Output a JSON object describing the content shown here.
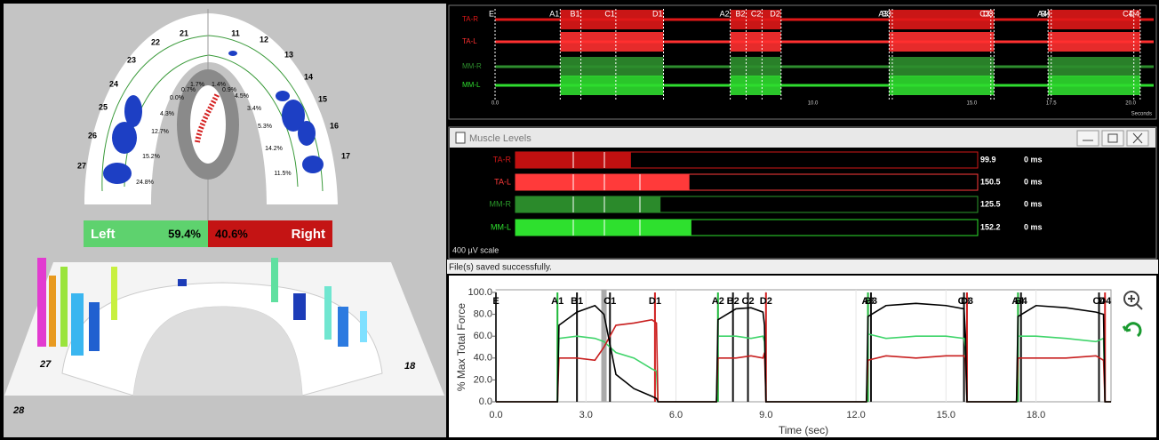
{
  "occlusal": {
    "teeth": [
      {
        "number": "21",
        "percent": "1.7%"
      },
      {
        "number": "22",
        "percent": "0.7%"
      },
      {
        "number": "23",
        "percent": "0.0%"
      },
      {
        "number": "24",
        "percent": "4.3%"
      },
      {
        "number": "25",
        "percent": "12.7%"
      },
      {
        "number": "26",
        "percent": "15.2%"
      },
      {
        "number": "27",
        "percent": "24.8%"
      },
      {
        "number": "11",
        "percent": "1.4%"
      },
      {
        "number": "12",
        "percent": "0.9%"
      },
      {
        "number": "13",
        "percent": "4.5%"
      },
      {
        "number": "14",
        "percent": "3.4%"
      },
      {
        "number": "15",
        "percent": "5.3%"
      },
      {
        "number": "16",
        "percent": "14.2%"
      },
      {
        "number": "17",
        "percent": "11.5%"
      }
    ]
  },
  "balance": {
    "left_label": "Left",
    "left_percent": "59.4%",
    "right_label": "Right",
    "right_percent": "40.6%"
  },
  "arch_3d_labels": [
    "27",
    "28",
    "18"
  ],
  "emg": {
    "channels": [
      "TA-R",
      "TA-L",
      "MM-R",
      "MM-L"
    ],
    "xticks": [
      {
        "value": 0,
        "label": "0.0"
      },
      {
        "value": 10,
        "label": "10.0"
      },
      {
        "value": 15,
        "label": "15.0"
      },
      {
        "value": 17.5,
        "label": "17.5"
      },
      {
        "value": 20,
        "label": "20.0"
      }
    ],
    "unit": "Seconds"
  },
  "muscle_levels": {
    "title": "Muscle Levels",
    "rows": [
      {
        "name": "TA-R",
        "value": 99.9,
        "delay": "0 ms"
      },
      {
        "name": "TA-L",
        "value": 150.5,
        "delay": "0 ms"
      },
      {
        "name": "MM-R",
        "value": 125.5,
        "delay": "0 ms"
      },
      {
        "name": "MM-L",
        "value": 152.2,
        "delay": "0 ms"
      }
    ],
    "scale": {
      "value": 400,
      "label": "400 µV scale"
    }
  },
  "status": "File(s) saved successfully.",
  "chart_data": {
    "type": "line",
    "x_label": "Time (sec)",
    "y_label": "% Max Total Force",
    "x": [
      0,
      2.05,
      2.1,
      2.7,
      3.3,
      3.6,
      4.0,
      4.6,
      5.2,
      5.35,
      5.4,
      7.35,
      7.4,
      8.0,
      8.5,
      8.9,
      8.95,
      9.0,
      12.35,
      12.4,
      13.0,
      14.0,
      15.0,
      15.6,
      15.65,
      15.7,
      17.35,
      17.4,
      18.0,
      19.0,
      20.0,
      20.25,
      20.3,
      20.5
    ],
    "series": [
      {
        "color": "#000000",
        "values": [
          0,
          0,
          70,
          82,
          88,
          80,
          25,
          12,
          5,
          3,
          0,
          0,
          75,
          85,
          86,
          82,
          70,
          0,
          0,
          78,
          88,
          90,
          88,
          85,
          60,
          0,
          0,
          78,
          88,
          86,
          82,
          80,
          0,
          0
        ]
      },
      {
        "color": "#3fd46a",
        "values": [
          0,
          0,
          58,
          60,
          58,
          55,
          45,
          40,
          30,
          28,
          0,
          0,
          60,
          60,
          58,
          60,
          55,
          0,
          0,
          62,
          58,
          60,
          60,
          58,
          50,
          0,
          0,
          60,
          60,
          58,
          55,
          58,
          0,
          0
        ]
      },
      {
        "color": "#c81e1e",
        "values": [
          0,
          0,
          40,
          40,
          38,
          50,
          70,
          72,
          75,
          72,
          0,
          0,
          40,
          40,
          42,
          40,
          45,
          0,
          0,
          38,
          42,
          40,
          42,
          42,
          40,
          0,
          0,
          40,
          40,
          40,
          42,
          38,
          0,
          0
        ]
      }
    ],
    "events": [
      {
        "label": "E",
        "time": 0
      },
      {
        "label": "A1",
        "time": 2.05
      },
      {
        "label": "B1",
        "time": 2.7
      },
      {
        "label": "C1",
        "time": 3.8
      },
      {
        "label": "D1",
        "time": 5.3
      },
      {
        "label": "A2",
        "time": 7.4
      },
      {
        "label": "B2",
        "time": 7.9
      },
      {
        "label": "C2",
        "time": 8.4
      },
      {
        "label": "D2",
        "time": 9.0
      },
      {
        "label": "A3",
        "time": 12.4
      },
      {
        "label": "B3",
        "time": 12.5
      },
      {
        "label": "C3",
        "time": 15.6
      },
      {
        "label": "D3",
        "time": 15.7
      },
      {
        "label": "A4",
        "time": 17.4
      },
      {
        "label": "B4",
        "time": 17.5
      },
      {
        "label": "C4",
        "time": 20.1
      },
      {
        "label": "D4",
        "time": 20.3
      }
    ],
    "xlim": [
      0,
      20.5
    ],
    "ylim": [
      0,
      100
    ],
    "xticks": [
      {
        "value": 0,
        "label": "0.0"
      },
      {
        "value": 3,
        "label": "3.0"
      },
      {
        "value": 6,
        "label": "6.0"
      },
      {
        "value": 9,
        "label": "9.0"
      },
      {
        "value": 12,
        "label": "12.0"
      },
      {
        "value": 15,
        "label": "15.0"
      },
      {
        "value": 18,
        "label": "18.0"
      }
    ],
    "yticks": [
      {
        "value": 0,
        "label": "0.0"
      },
      {
        "value": 20,
        "label": "20.0"
      },
      {
        "value": 40,
        "label": "40.0"
      },
      {
        "value": 60,
        "label": "60.0"
      },
      {
        "value": 80,
        "label": "80.0"
      },
      {
        "value": 100,
        "label": "100.0"
      }
    ]
  }
}
